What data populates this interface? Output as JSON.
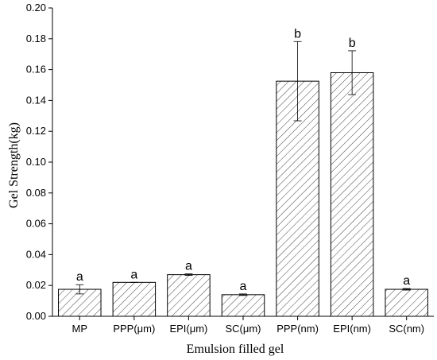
{
  "chart_data": {
    "type": "bar",
    "categories": [
      "MP",
      "PPP(μm)",
      "EPI(μm)",
      "SC(μm)",
      "PPP(nm)",
      "EPI(nm)",
      "SC(nm)"
    ],
    "values": [
      0.0175,
      0.022,
      0.027,
      0.014,
      0.1525,
      0.158,
      0.0175
    ],
    "errors": [
      0.003,
      0.0,
      0.0005,
      0.0005,
      0.0257,
      0.0142,
      0.0005
    ],
    "significance": [
      "a",
      "a",
      "a",
      "a",
      "b",
      "b",
      "a"
    ],
    "title": "",
    "xlabel": "Emulsion filled gel",
    "ylabel": "Gel Strength(kg)",
    "ylim": [
      0.0,
      0.2
    ],
    "yticks": [
      "0.00",
      "0.02",
      "0.04",
      "0.06",
      "0.08",
      "0.10",
      "0.12",
      "0.14",
      "0.16",
      "0.18",
      "0.20"
    ],
    "grid": false,
    "legend": "none",
    "bar_fill": "hatched",
    "colors": {
      "bar_edge": "#000000",
      "hatch": "#444444",
      "background": "#ffffff"
    }
  }
}
